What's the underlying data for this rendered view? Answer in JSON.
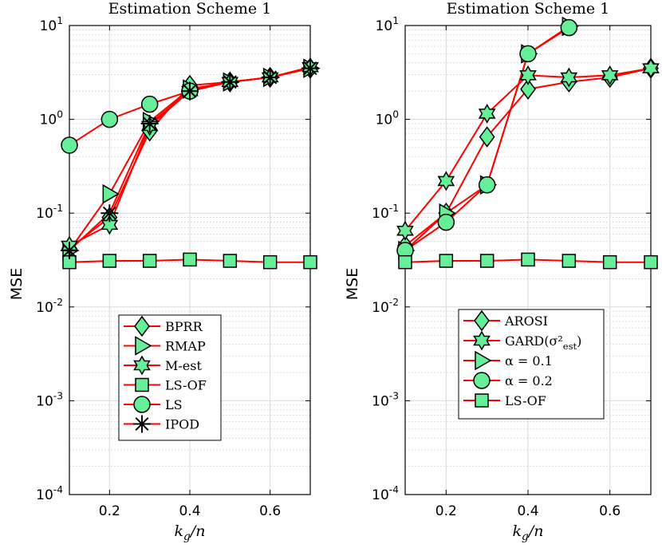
{
  "chart_data": [
    {
      "type": "line",
      "title": "Estimation Scheme 1",
      "xlabel": "k_g/n",
      "ylabel": "MSE",
      "yscale": "log",
      "xlim": [
        0.1,
        0.7
      ],
      "ylim": [
        0.0001,
        10
      ],
      "xticks": [
        "0.2",
        "0.4",
        "0.6"
      ],
      "yticks": [
        "10^1",
        "10^0",
        "10^-1",
        "10^-2",
        "10^-3",
        "10^-4"
      ],
      "grid": true,
      "legend_position": "bottom-center",
      "series": [
        {
          "name": "BPRR",
          "marker": "diamond",
          "x": [
            0.1,
            0.2,
            0.3,
            0.4,
            0.5,
            0.6,
            0.7
          ],
          "y": [
            0.042,
            0.09,
            0.75,
            2.3,
            2.5,
            2.8,
            3.5
          ]
        },
        {
          "name": "RMAP",
          "marker": "triangle-right",
          "x": [
            0.1,
            0.2,
            0.3,
            0.4,
            0.5,
            0.6,
            0.7
          ],
          "y": [
            0.04,
            0.16,
            0.95,
            2.1,
            2.5,
            2.8,
            3.5
          ]
        },
        {
          "name": "M-est",
          "marker": "hexagram",
          "x": [
            0.1,
            0.2,
            0.3,
            0.4,
            0.5,
            0.6,
            0.7
          ],
          "y": [
            0.045,
            0.075,
            0.85,
            2.0,
            2.5,
            2.8,
            3.6
          ]
        },
        {
          "name": "LS-OF",
          "marker": "square",
          "x": [
            0.1,
            0.2,
            0.3,
            0.4,
            0.5,
            0.6,
            0.7
          ],
          "y": [
            0.03,
            0.031,
            0.031,
            0.032,
            0.031,
            0.03,
            0.03
          ]
        },
        {
          "name": "LS",
          "marker": "circle",
          "x": [
            0.1,
            0.2,
            0.3,
            0.4
          ],
          "y": [
            0.53,
            1.0,
            1.45,
            2.0
          ]
        },
        {
          "name": "IPOD",
          "marker": "asterisk",
          "x": [
            0.1,
            0.2,
            0.3,
            0.4,
            0.5,
            0.6,
            0.7
          ],
          "y": [
            0.04,
            0.1,
            0.9,
            2.0,
            2.5,
            2.8,
            3.5
          ]
        }
      ]
    },
    {
      "type": "line",
      "title": "Estimation Scheme 1",
      "xlabel": "k_g/n",
      "ylabel": "MSE",
      "yscale": "log",
      "xlim": [
        0.1,
        0.7
      ],
      "ylim": [
        0.0001,
        10
      ],
      "xticks": [
        "0.2",
        "0.4",
        "0.6"
      ],
      "yticks": [
        "10^1",
        "10^0",
        "10^-1",
        "10^-2",
        "10^-3",
        "10^-4"
      ],
      "grid": true,
      "legend_position": "bottom-center",
      "series": [
        {
          "name": "AROSI",
          "marker": "diamond",
          "x": [
            0.1,
            0.2,
            0.3,
            0.4,
            0.5,
            0.6,
            0.7
          ],
          "y": [
            0.045,
            0.1,
            0.65,
            2.1,
            2.5,
            2.8,
            3.5
          ]
        },
        {
          "name": "GARD(σ²_est)",
          "marker": "hexagram",
          "x": [
            0.1,
            0.2,
            0.3,
            0.4,
            0.5,
            0.6,
            0.7
          ],
          "y": [
            0.065,
            0.22,
            1.15,
            2.95,
            2.8,
            2.95,
            3.5
          ]
        },
        {
          "name": "α = 0.1",
          "marker": "triangle-right",
          "x": [
            0.1,
            0.2,
            0.3,
            0.4,
            0.5
          ],
          "y": [
            0.04,
            0.1,
            0.2,
            5.0,
            9.8
          ]
        },
        {
          "name": "α = 0.2",
          "marker": "circle",
          "x": [
            0.1,
            0.2,
            0.3,
            0.4,
            0.5
          ],
          "y": [
            0.04,
            0.08,
            0.2,
            5.0,
            9.5
          ]
        },
        {
          "name": "LS-OF",
          "marker": "square",
          "x": [
            0.1,
            0.2,
            0.3,
            0.4,
            0.5,
            0.6,
            0.7
          ],
          "y": [
            0.03,
            0.031,
            0.031,
            0.032,
            0.031,
            0.03,
            0.03
          ]
        }
      ]
    }
  ]
}
